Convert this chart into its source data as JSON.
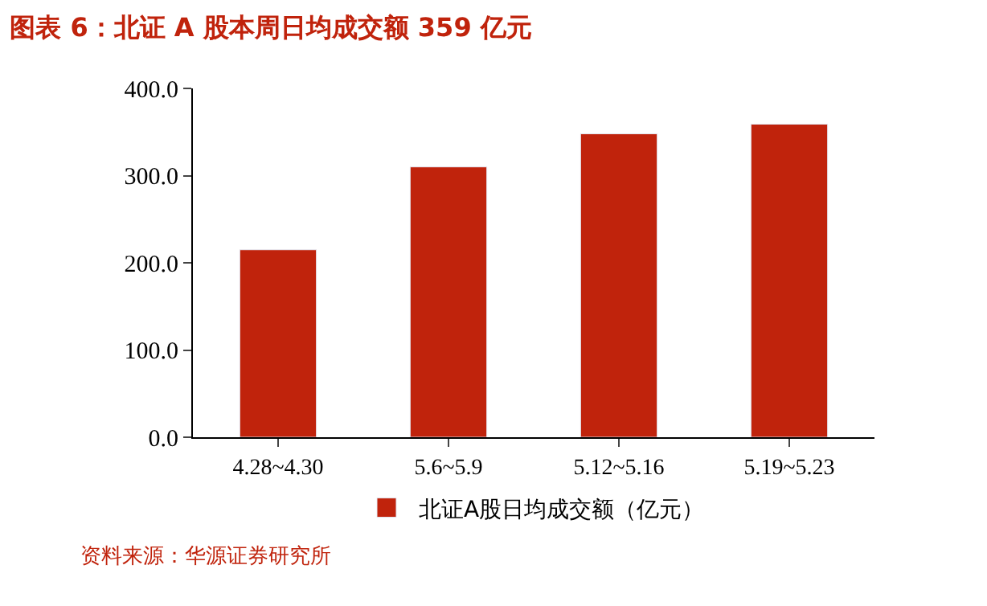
{
  "chart_data": {
    "type": "bar",
    "title": "图表 6：北证 A 股本周日均成交额 359 亿元",
    "categories": [
      "4.28~4.30",
      "5.6~5.9",
      "5.12~5.16",
      "5.19~5.23"
    ],
    "series": [
      {
        "name": "北证A股日均成交额（亿元）",
        "color": "#c0230c",
        "values": [
          215,
          310,
          348,
          359
        ]
      }
    ],
    "ylim": [
      0,
      400
    ],
    "yticks": [
      {
        "value": 0,
        "label": "0.0"
      },
      {
        "value": 100,
        "label": "100.0"
      },
      {
        "value": 200,
        "label": "200.0"
      },
      {
        "value": 300,
        "label": "300.0"
      },
      {
        "value": 400,
        "label": "400.0"
      }
    ],
    "legend": "bottom",
    "annotations": [
      "资料来源：华源证券研究所"
    ]
  }
}
